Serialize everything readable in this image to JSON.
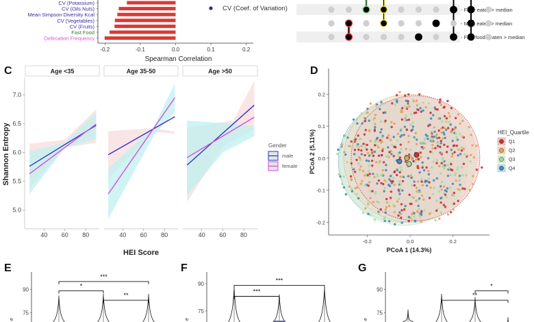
{
  "chart_data": [
    {
      "panel": "",
      "type": "bar",
      "orientation": "horizontal",
      "title": "",
      "xlabel": "Spearman Correlation",
      "ylabel": "",
      "xlim": [
        -0.22,
        0.22
      ],
      "xticks": [
        "-0.2",
        "-0.1",
        "0.0",
        "0.1",
        "0.2"
      ],
      "xtick_values": [
        -0.2,
        -0.1,
        0.0,
        0.1,
        0.2
      ],
      "bar_color": "#d93a35",
      "categories": [
        {
          "label": "CV (Potassium)",
          "value": -0.138,
          "color": "#3a2a9e"
        },
        {
          "label": "CV (Oils Nuts)",
          "value": -0.161,
          "color": "#3a2a9e"
        },
        {
          "label": "Mean Simpson Diversity Kcal",
          "value": -0.165,
          "color": "#3a2a9e"
        },
        {
          "label": "CV (Vegetables)",
          "value": -0.172,
          "color": "#3a2a9e"
        },
        {
          "label": "CV (Fruits)",
          "value": -0.173,
          "color": "#3a2a9e"
        },
        {
          "label": "Fast Food",
          "value": -0.187,
          "color": "#2f7a2f"
        },
        {
          "label": "Defecation Frequency",
          "value": -0.201,
          "color": "#d94fd9"
        }
      ],
      "legend": [
        {
          "label": "CV (Coef. of Variation)",
          "color": "#3a1f8c"
        }
      ]
    },
    {
      "panel": "",
      "type": "table",
      "subtype": "upset-matrix",
      "rows": [
        "Fiber eaten > median",
        "Meat eaten > median",
        "Fast foods eaten > median"
      ],
      "columns": [
        {
          "active": [
            false,
            false,
            false
          ],
          "highlight": ""
        },
        {
          "active": [
            false,
            true,
            true
          ],
          "highlight": "#e53b3b"
        },
        {
          "active": [
            true,
            false,
            false
          ],
          "highlight": "#7be07b"
        },
        {
          "active": [
            true,
            true,
            false
          ],
          "highlight": "#e6e04a"
        },
        {
          "active": [
            false,
            false,
            false
          ],
          "highlight": ""
        },
        {
          "active": [
            false,
            false,
            true
          ],
          "highlight": ""
        },
        {
          "active": [
            false,
            true,
            false
          ],
          "highlight": ""
        },
        {
          "active": [
            true,
            false,
            true
          ],
          "highlight": ""
        },
        {
          "active": [
            true,
            true,
            true
          ],
          "highlight": ""
        },
        {
          "active": [
            false,
            false,
            false
          ],
          "highlight": ""
        }
      ]
    },
    {
      "panel": "C",
      "type": "line",
      "facets": [
        "Age <35",
        "Age 35-50",
        "Age >50"
      ],
      "xlabel": "HEI Score",
      "ylabel": "Shannon Entropy",
      "xlim": [
        22,
        93
      ],
      "ylim": [
        4.7,
        7.3
      ],
      "xticks": [
        40,
        60,
        80
      ],
      "yticks": [
        "5.0",
        "5.5",
        "6.0",
        "6.5",
        "7.0"
      ],
      "ytick_values": [
        5.0,
        5.5,
        6.0,
        6.5,
        7.0
      ],
      "legend_title": "Gender",
      "series": [
        {
          "name": "male",
          "color": "#3a2fc0",
          "ribbon": "#bff0ef",
          "lines": [
            [
              [
                26,
                5.76
              ],
              [
                90,
                6.47
              ]
            ],
            [
              [
                26,
                5.96
              ],
              [
                90,
                6.62
              ]
            ],
            [
              [
                26,
                5.78
              ],
              [
                90,
                6.82
              ]
            ]
          ],
          "ribbons_upper": [
            [
              [
                26,
                6.02
              ],
              [
                60,
                6.17
              ],
              [
                90,
                6.7
              ]
            ],
            [
              [
                26,
                5.72
              ],
              [
                70,
                6.45
              ],
              [
                90,
                7.2
              ]
            ],
            [
              [
                26,
                6.55
              ],
              [
                70,
                6.5
              ],
              [
                90,
                6.45
              ]
            ]
          ],
          "ribbons_lower": [
            [
              [
                26,
                5.28
              ],
              [
                60,
                6.08
              ],
              [
                90,
                6.24
              ]
            ],
            [
              [
                26,
                4.85
              ],
              [
                70,
                6.3
              ],
              [
                90,
                6.7
              ]
            ],
            [
              [
                26,
                5.25
              ],
              [
                60,
                6.0
              ],
              [
                90,
                6.28
              ]
            ]
          ]
        },
        {
          "name": "female",
          "color": "#d44fd8",
          "ribbon": "#f7dcdc",
          "lines": [
            [
              [
                26,
                5.63
              ],
              [
                90,
                6.49
              ]
            ],
            [
              [
                26,
                5.28
              ],
              [
                90,
                6.95
              ]
            ],
            [
              [
                26,
                5.91
              ],
              [
                90,
                6.61
              ]
            ]
          ],
          "ribbons_upper": [
            [
              [
                26,
                6.15
              ],
              [
                60,
                6.22
              ],
              [
                90,
                6.75
              ]
            ],
            [
              [
                26,
                6.37
              ],
              [
                70,
                6.42
              ],
              [
                90,
                6.36
              ]
            ],
            [
              [
                26,
                6.43
              ],
              [
                70,
                6.55
              ],
              [
                90,
                7.24
              ]
            ]
          ],
          "ribbons_lower": [
            [
              [
                26,
                5.38
              ],
              [
                60,
                6.08
              ],
              [
                90,
                6.17
              ]
            ],
            [
              [
                26,
                5.55
              ],
              [
                70,
                6.35
              ],
              [
                90,
                6.33
              ]
            ],
            [
              [
                26,
                5.14
              ],
              [
                60,
                6.1
              ],
              [
                90,
                6.4
              ]
            ]
          ]
        }
      ]
    },
    {
      "panel": "D",
      "type": "scatter",
      "xlabel": "PCoA 1 (14.3%)",
      "ylabel": "PCoA 2 (5.11%)",
      "xlim": [
        -0.38,
        0.37
      ],
      "ylim": [
        -0.24,
        0.28
      ],
      "xticks": [
        "-0.2",
        "0.0",
        "0.2"
      ],
      "xtick_values": [
        -0.2,
        0.0,
        0.2
      ],
      "yticks": [
        "-0.2",
        "-0.1",
        "0.0",
        "0.1",
        "0.2"
      ],
      "ytick_values": [
        -0.2,
        -0.1,
        0.0,
        0.1,
        0.2
      ],
      "legend_title": "HEI_Quartile",
      "series": [
        {
          "name": "Q1",
          "color": "#c8313a",
          "centroid": [
            0.03,
            0.01
          ],
          "ellipse": {
            "cx": 0.025,
            "cy": 0.0,
            "rx": 0.3,
            "ry": 0.195
          }
        },
        {
          "name": "Q2",
          "color": "#e0a35c",
          "centroid": [
            -0.015,
            0.0
          ],
          "ellipse": {
            "cx": 0.0,
            "cy": 0.0,
            "rx": 0.31,
            "ry": 0.2
          }
        },
        {
          "name": "Q3",
          "color": "#a8d89e",
          "centroid": [
            -0.005,
            -0.018
          ],
          "ellipse": {
            "cx": -0.03,
            "cy": -0.015,
            "rx": 0.3,
            "ry": 0.195
          }
        },
        {
          "name": "Q4",
          "color": "#4a87b8",
          "centroid": [
            -0.05,
            -0.01
          ],
          "ellipse": {
            "cx": -0.045,
            "cy": -0.01,
            "rx": 0.29,
            "ry": 0.19
          }
        }
      ],
      "approx_points_per_group": 160
    },
    {
      "panel": "E",
      "type": "violin",
      "yticks": [
        "75",
        "90"
      ],
      "ytick_values": [
        75,
        90
      ],
      "ylim": [
        70,
        102
      ],
      "groups": 3,
      "violin_tops": [
        86,
        87,
        87
      ],
      "comparisons": [
        {
          "from": 0,
          "to": 2,
          "y": 95,
          "label": "***"
        },
        {
          "from": 0,
          "to": 1,
          "y": 89,
          "label": "*"
        },
        {
          "from": 1,
          "to": 2,
          "y": 83,
          "label": "**"
        }
      ]
    },
    {
      "panel": "F",
      "type": "violin",
      "yticks": [
        "75",
        "90"
      ],
      "ytick_values": [
        75,
        90
      ],
      "ylim": [
        70,
        97
      ],
      "groups": 3,
      "violin_tops": [
        88,
        84,
        88
      ],
      "comparisons": [
        {
          "from": 0,
          "to": 2,
          "y": 89,
          "label": "***"
        },
        {
          "from": 0,
          "to": 1,
          "y": 83,
          "label": "***"
        }
      ]
    },
    {
      "panel": "G",
      "type": "violin",
      "yticks": [
        "75",
        "90"
      ],
      "ytick_values": [
        75,
        90
      ],
      "ylim": [
        70,
        102
      ],
      "groups": 4,
      "violin_tops": [
        77,
        87,
        85,
        72
      ],
      "comparisons": [
        {
          "from": 1,
          "to": 3,
          "y": 83,
          "label": "**"
        },
        {
          "from": 2,
          "to": 3,
          "y": 89,
          "label": "*"
        }
      ]
    }
  ]
}
